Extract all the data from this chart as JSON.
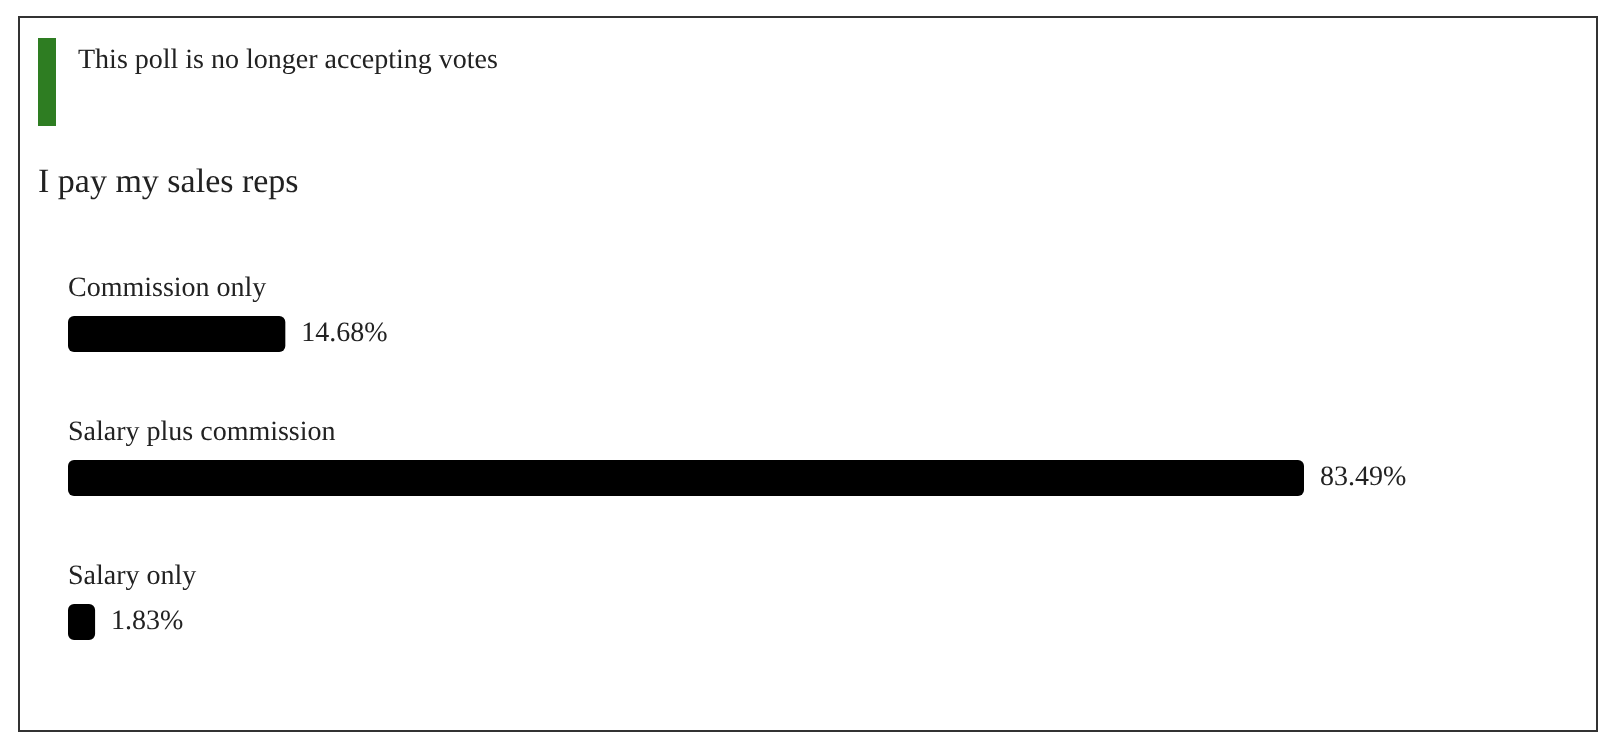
{
  "chart_data": {
    "type": "bar",
    "orientation": "horizontal",
    "title": "I pay my sales reps",
    "annotations": [
      "This poll is no longer accepting votes"
    ],
    "categories": [
      "Commission only",
      "Salary plus commission",
      "Salary only"
    ],
    "values": [
      14.68,
      83.49,
      1.83
    ],
    "value_labels": [
      "14.68%",
      "83.49%",
      "1.83%"
    ],
    "color": "#000000"
  }
}
